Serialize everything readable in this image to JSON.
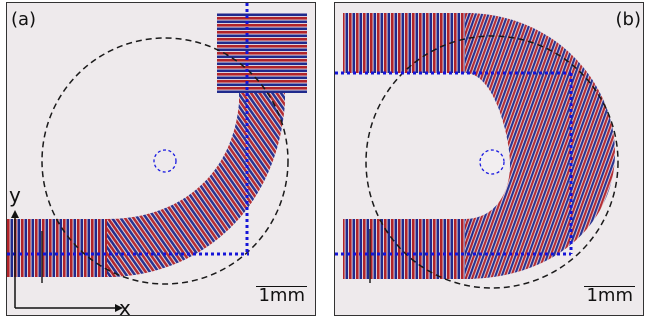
{
  "figure": {
    "panels": [
      {
        "id": "a",
        "label": "(a)",
        "scale_bar": "1mm"
      },
      {
        "id": "b",
        "label": "(b)",
        "scale_bar": "1mm"
      }
    ],
    "axes": {
      "x_label": "x",
      "y_label": "y"
    },
    "colors": {
      "wave_red": "#b0242a",
      "wave_blue": "#1f2a8c",
      "guide_line": "#1515d8",
      "region_circle": "#1a1a1a",
      "source_circle": "#1a1ae0",
      "background": "#eeeaec"
    }
  }
}
